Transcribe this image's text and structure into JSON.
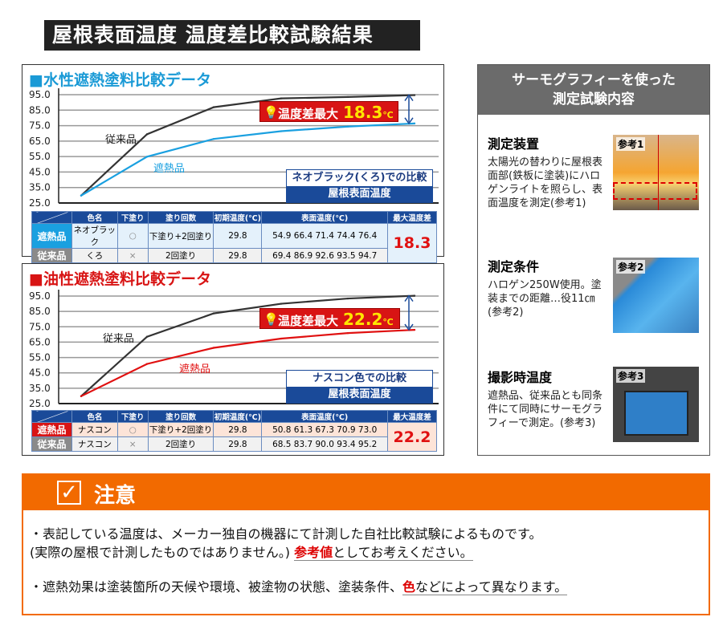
{
  "banner": "屋根表面温度 温度差比較試験結果",
  "colors": {
    "conventional": "#333333",
    "heat_shield": "#1aa0e0",
    "water_title": "#1a9ad6",
    "oil_title": "#d81414",
    "table_header": "#1a4a99",
    "notice": "#f26a00"
  },
  "table_headers": [
    "色名",
    "下塗り",
    "塗り回数",
    "初期温度(℃)",
    "表面温度(℃)",
    "最大温度差"
  ],
  "chart_data": [
    {
      "type": "line",
      "title": "■水性遮熱塗料比較データ",
      "ylim": [
        25,
        95
      ],
      "yticks": [
        "95.0",
        "85.0",
        "75.0",
        "65.0",
        "55.0",
        "45.0",
        "35.0",
        "25.0"
      ],
      "grid": true,
      "series": [
        {
          "name": "従来品",
          "values": [
            29.8,
            69.4,
            86.9,
            92.6,
            93.5,
            94.7
          ]
        },
        {
          "name": "遮熱品",
          "values": [
            29.8,
            54.9,
            66.4,
            71.4,
            74.4,
            76.4
          ]
        }
      ],
      "annotation": {
        "label": "温度差最大",
        "value": "18.3",
        "unit": "℃"
      },
      "compare_label": "ネオブラック(くろ)での比較",
      "compare_sub": "屋根表面温度",
      "rows": [
        {
          "label": "遮熱品",
          "color": "ネオブラック",
          "primer": "○",
          "coats": "下塗り+2回塗り",
          "initial": "29.8",
          "surface": "54.9 66.4 71.4 74.4 76.4"
        },
        {
          "label": "従来品",
          "color": "くろ",
          "primer": "×",
          "coats": "2回塗り",
          "initial": "29.8",
          "surface": "69.4 86.9 92.6 93.5 94.7"
        }
      ],
      "max_diff": "18.3"
    },
    {
      "type": "line",
      "title": "■油性遮熱塗料比較データ",
      "ylim": [
        25,
        95
      ],
      "yticks": [
        "95.0",
        "85.0",
        "75.0",
        "65.0",
        "55.0",
        "45.0",
        "35.0",
        "25.0"
      ],
      "grid": true,
      "series": [
        {
          "name": "従来品",
          "values": [
            29.8,
            68.5,
            83.7,
            90.0,
            93.4,
            95.2
          ]
        },
        {
          "name": "遮熱品",
          "values": [
            29.8,
            50.8,
            61.3,
            67.3,
            70.9,
            73.0
          ]
        }
      ],
      "annotation": {
        "label": "温度差最大",
        "value": "22.2",
        "unit": "℃"
      },
      "compare_label": "ナスコン色での比較",
      "compare_sub": "屋根表面温度",
      "rows": [
        {
          "label": "遮熱品",
          "color": "ナスコン",
          "primer": "○",
          "coats": "下塗り+2回塗り",
          "initial": "29.8",
          "surface": "50.8 61.3 67.3 70.9 73.0"
        },
        {
          "label": "従来品",
          "color": "ナスコン",
          "primer": "×",
          "coats": "2回塗り",
          "initial": "29.8",
          "surface": "68.5 83.7 90.0 93.4 95.2"
        }
      ],
      "max_diff": "22.2"
    }
  ],
  "thermo": {
    "title1": "サーモグラフィーを使った",
    "title2": "測定試験内容",
    "sections": [
      {
        "heading": "測定装置",
        "text": "太陽光の替わりに屋根表面部(鉄板に塗装)にハロゲンライトを照らし、表面温度を測定(参考1)",
        "ref": "参考1"
      },
      {
        "heading": "測定条件",
        "text": "ハロゲン250W使用。塗装までの距離…役11㎝(参考2)",
        "ref": "参考2"
      },
      {
        "heading": "撮影時温度",
        "text": "遮熱品、従来品とも同条件にて同時にサーモグラフィーで測定。(参考3)",
        "ref": "参考3"
      }
    ]
  },
  "notice": {
    "title": "注意",
    "line1": "・表記している温度は、メーカー独自の機器にて計測した自社比較試験によるものです。",
    "line2a": "(実際の屋根で計測したものではありません。) ",
    "line2b": "参考値",
    "line2c": "としてお考えください。",
    "line3a": "・遮熱効果は塗装箇所の天候や環境、被塗物の状態、塗装条件、",
    "line3b": "色",
    "line3c": "などによって異なります。"
  }
}
